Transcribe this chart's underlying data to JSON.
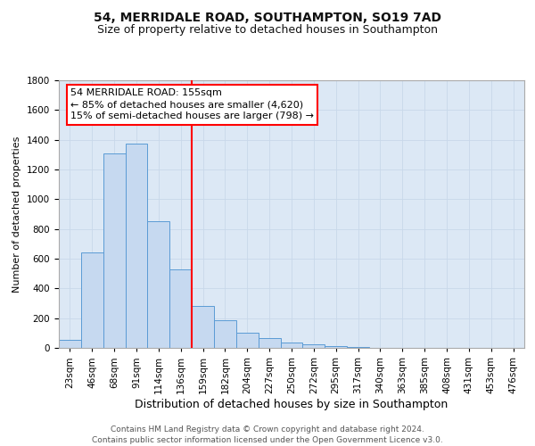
{
  "title": "54, MERRIDALE ROAD, SOUTHAMPTON, SO19 7AD",
  "subtitle": "Size of property relative to detached houses in Southampton",
  "xlabel": "Distribution of detached houses by size in Southampton",
  "ylabel": "Number of detached properties",
  "bin_labels": [
    "23sqm",
    "46sqm",
    "68sqm",
    "91sqm",
    "114sqm",
    "136sqm",
    "159sqm",
    "182sqm",
    "204sqm",
    "227sqm",
    "250sqm",
    "272sqm",
    "295sqm",
    "317sqm",
    "340sqm",
    "363sqm",
    "385sqm",
    "408sqm",
    "431sqm",
    "453sqm",
    "476sqm"
  ],
  "bar_heights": [
    55,
    645,
    1310,
    1375,
    850,
    530,
    280,
    185,
    105,
    68,
    35,
    22,
    10,
    5,
    2,
    0,
    0,
    0,
    0,
    0,
    0
  ],
  "bar_color": "#c6d9f0",
  "bar_edge_color": "#5b9bd5",
  "highlight_line_idx": 6,
  "highlight_line_color": "red",
  "annotation_title": "54 MERRIDALE ROAD: 155sqm",
  "annotation_line1": "← 85% of detached houses are smaller (4,620)",
  "annotation_line2": "15% of semi-detached houses are larger (798) →",
  "annotation_box_color": "white",
  "annotation_box_edge_color": "red",
  "ylim": [
    0,
    1800
  ],
  "yticks": [
    0,
    200,
    400,
    600,
    800,
    1000,
    1200,
    1400,
    1600,
    1800
  ],
  "grid_color": "#c8d8ea",
  "background_color": "#dce8f5",
  "fig_background_color": "#ffffff",
  "footer_line1": "Contains HM Land Registry data © Crown copyright and database right 2024.",
  "footer_line2": "Contains public sector information licensed under the Open Government Licence v3.0.",
  "title_fontsize": 10,
  "subtitle_fontsize": 9,
  "xlabel_fontsize": 9,
  "ylabel_fontsize": 8,
  "tick_fontsize": 7.5,
  "annotation_fontsize": 8,
  "footer_fontsize": 6.5
}
